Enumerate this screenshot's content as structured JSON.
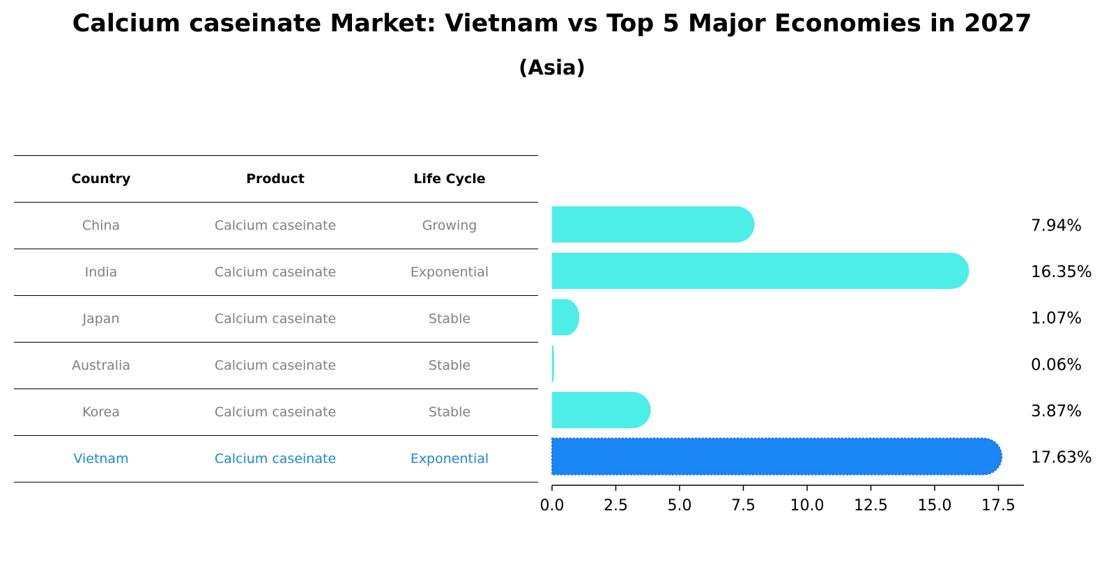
{
  "title": "Calcium caseinate Market: Vietnam vs Top 5 Major Economies in 2027",
  "subtitle": "(Asia)",
  "table": {
    "headers": [
      "Country",
      "Product",
      "Life Cycle"
    ],
    "rows": [
      {
        "country": "China",
        "product": "Calcium caseinate",
        "life_cycle": "Growing"
      },
      {
        "country": "India",
        "product": "Calcium caseinate",
        "life_cycle": "Exponential"
      },
      {
        "country": "Japan",
        "product": "Calcium caseinate",
        "life_cycle": "Stable"
      },
      {
        "country": "Australia",
        "product": "Calcium caseinate",
        "life_cycle": "Stable"
      },
      {
        "country": "Korea",
        "product": "Calcium caseinate",
        "life_cycle": "Stable"
      },
      {
        "country": "Vietnam",
        "product": "Calcium caseinate",
        "life_cycle": "Exponential"
      }
    ]
  },
  "colors": {
    "bar": "#4DEDE8",
    "highlight": "#1A85F5",
    "highlight_text": "#1f86d8",
    "muted_text": "#808080"
  },
  "chart_data": {
    "type": "bar",
    "orientation": "horizontal",
    "categories": [
      "China",
      "India",
      "Japan",
      "Australia",
      "Korea",
      "Vietnam"
    ],
    "values": [
      7.94,
      16.35,
      1.07,
      0.06,
      3.87,
      17.63
    ],
    "value_labels": [
      "7.94%",
      "16.35%",
      "1.07%",
      "0.06%",
      "3.87%",
      "17.63%"
    ],
    "highlight": "Vietnam",
    "xlim": [
      0,
      18.5
    ],
    "xticks": [
      0.0,
      2.5,
      5.0,
      7.5,
      10.0,
      12.5,
      15.0,
      17.5
    ],
    "xtick_labels": [
      "0.0",
      "2.5",
      "5.0",
      "7.5",
      "10.0",
      "12.5",
      "15.0",
      "17.5"
    ],
    "xlabel": "",
    "ylabel": ""
  }
}
